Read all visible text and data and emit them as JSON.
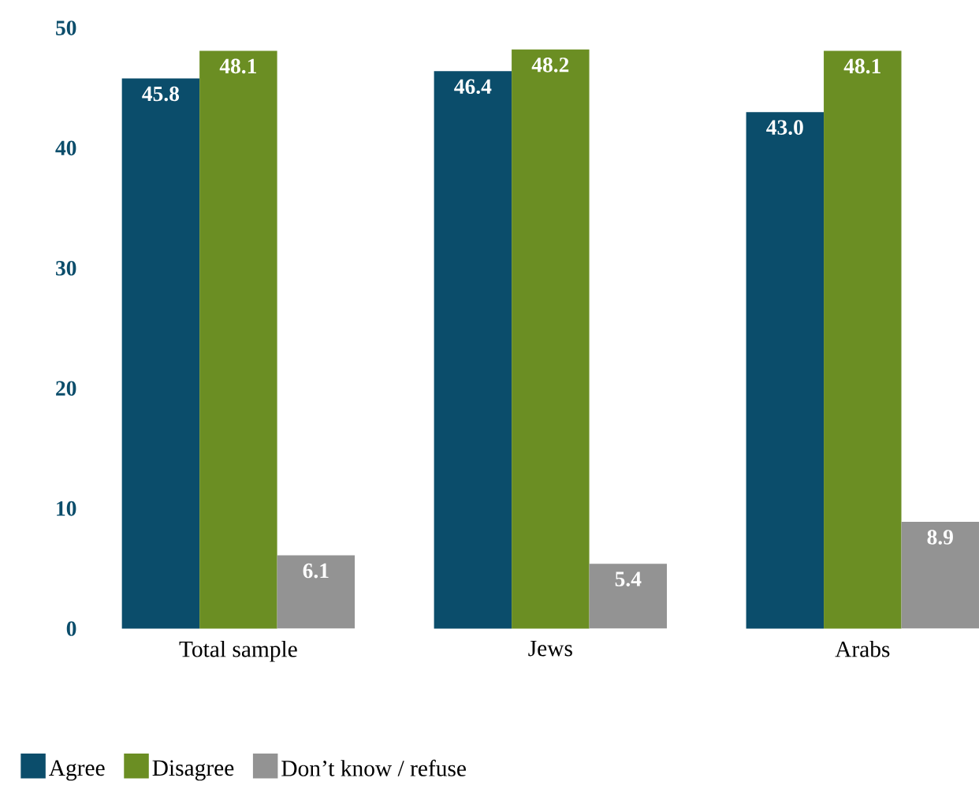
{
  "chart_data": {
    "type": "bar",
    "categories": [
      "Total sample",
      "Jews",
      "Arabs"
    ],
    "series": [
      {
        "name": "Agree",
        "color": "#0b4d6b",
        "values": [
          45.8,
          46.4,
          43.0
        ],
        "value_labels": [
          "45.8",
          "46.4",
          "43.0"
        ]
      },
      {
        "name": "Disagree",
        "color": "#6b8e23",
        "values": [
          48.1,
          48.2,
          48.1
        ],
        "value_labels": [
          "48.1",
          "48.2",
          "48.1"
        ]
      },
      {
        "name": "Don’t know / refuse",
        "color": "#939393",
        "values": [
          6.1,
          5.4,
          8.9
        ],
        "value_labels": [
          "6.1",
          "5.4",
          "8.9"
        ]
      }
    ],
    "ylim": [
      0,
      50
    ],
    "yticks": [
      0,
      10,
      20,
      30,
      40,
      50
    ],
    "legend": "bottom left",
    "grid": false
  }
}
